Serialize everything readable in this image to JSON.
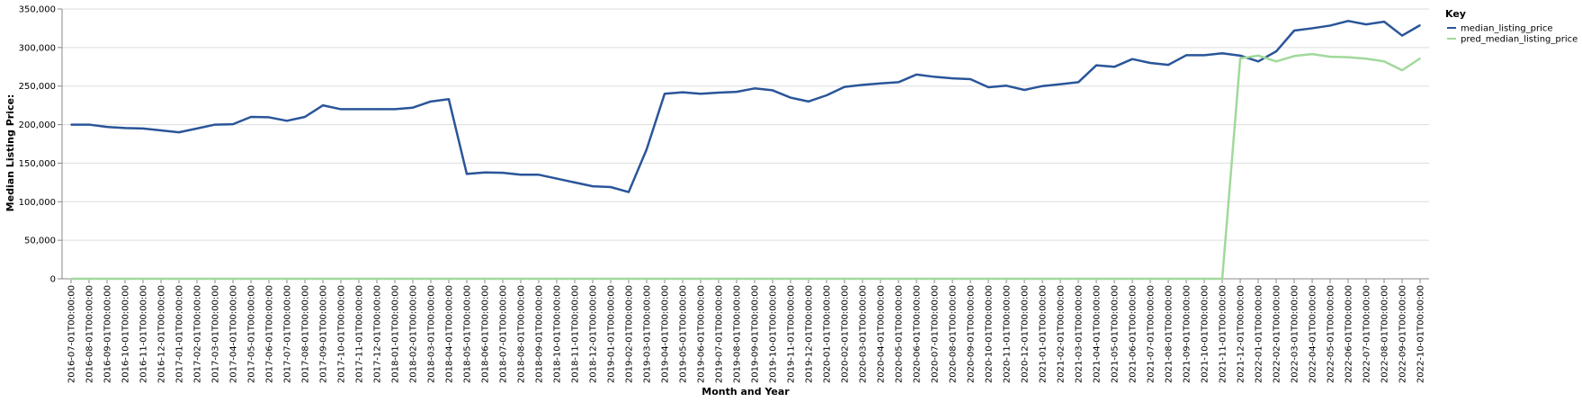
{
  "chart_data": {
    "type": "line",
    "xlabel": "Month and Year",
    "ylabel": "Median Listing Price:",
    "ylim": [
      0,
      350000
    ],
    "yticks": [
      "0",
      "50,000",
      "100,000",
      "150,000",
      "200,000",
      "250,000",
      "300,000",
      "350,000"
    ],
    "ytick_values": [
      0,
      50000,
      100000,
      150000,
      200000,
      250000,
      300000,
      350000
    ],
    "grid": true,
    "legend": {
      "title": "Key",
      "placement": "top-right"
    },
    "x": [
      "2016-07-01T00:00:00",
      "2016-08-01T00:00:00",
      "2016-09-01T00:00:00",
      "2016-10-01T00:00:00",
      "2016-11-01T00:00:00",
      "2016-12-01T00:00:00",
      "2017-01-01T00:00:00",
      "2017-02-01T00:00:00",
      "2017-03-01T00:00:00",
      "2017-04-01T00:00:00",
      "2017-05-01T00:00:00",
      "2017-06-01T00:00:00",
      "2017-07-01T00:00:00",
      "2017-08-01T00:00:00",
      "2017-09-01T00:00:00",
      "2017-10-01T00:00:00",
      "2017-11-01T00:00:00",
      "2017-12-01T00:00:00",
      "2018-01-01T00:00:00",
      "2018-02-01T00:00:00",
      "2018-03-01T00:00:00",
      "2018-04-01T00:00:00",
      "2018-05-01T00:00:00",
      "2018-06-01T00:00:00",
      "2018-07-01T00:00:00",
      "2018-08-01T00:00:00",
      "2018-09-01T00:00:00",
      "2018-10-01T00:00:00",
      "2018-11-01T00:00:00",
      "2018-12-01T00:00:00",
      "2019-01-01T00:00:00",
      "2019-02-01T00:00:00",
      "2019-03-01T00:00:00",
      "2019-04-01T00:00:00",
      "2019-05-01T00:00:00",
      "2019-06-01T00:00:00",
      "2019-07-01T00:00:00",
      "2019-08-01T00:00:00",
      "2019-09-01T00:00:00",
      "2019-10-01T00:00:00",
      "2019-11-01T00:00:00",
      "2019-12-01T00:00:00",
      "2020-01-01T00:00:00",
      "2020-02-01T00:00:00",
      "2020-03-01T00:00:00",
      "2020-04-01T00:00:00",
      "2020-05-01T00:00:00",
      "2020-06-01T00:00:00",
      "2020-07-01T00:00:00",
      "2020-08-01T00:00:00",
      "2020-09-01T00:00:00",
      "2020-10-01T00:00:00",
      "2020-11-01T00:00:00",
      "2020-12-01T00:00:00",
      "2021-01-01T00:00:00",
      "2021-02-01T00:00:00",
      "2021-03-01T00:00:00",
      "2021-04-01T00:00:00",
      "2021-05-01T00:00:00",
      "2021-06-01T00:00:00",
      "2021-07-01T00:00:00",
      "2021-08-01T00:00:00",
      "2021-09-01T00:00:00",
      "2021-10-01T00:00:00",
      "2021-11-01T00:00:00",
      "2021-12-01T00:00:00",
      "2022-01-01T00:00:00",
      "2022-02-01T00:00:00",
      "2022-03-01T00:00:00",
      "2022-04-01T00:00:00",
      "2022-05-01T00:00:00",
      "2022-06-01T00:00:00",
      "2022-07-01T00:00:00",
      "2022-08-01T00:00:00",
      "2022-09-01T00:00:00",
      "2022-10-01T00:00:00"
    ],
    "series": [
      {
        "name": "median_listing_price",
        "color": "#2a5599",
        "values": [
          200000,
          200000,
          197000,
          195500,
          195000,
          192500,
          190000,
          195000,
          200000,
          200500,
          210000,
          209500,
          205000,
          210000,
          225000,
          220000,
          220000,
          220000,
          220000,
          222000,
          230000,
          233000,
          136000,
          138000,
          137500,
          135000,
          135000,
          130000,
          125000,
          120000,
          119000,
          112500,
          168000,
          240000,
          242000,
          240000,
          241500,
          242500,
          247000,
          244500,
          235000,
          230000,
          238000,
          249000,
          251500,
          253500,
          255000,
          265000,
          262000,
          260000,
          259000,
          248500,
          250500,
          245000,
          250000,
          252500,
          255000,
          277000,
          275000,
          285000,
          280000,
          277500,
          290000,
          290000,
          292500,
          289500,
          282000,
          295000,
          322000,
          325000,
          328500,
          334500,
          330000,
          333500,
          315500,
          329000
        ]
      },
      {
        "name": "pred_median_listing_price",
        "color": "#a1d99b",
        "values": [
          0,
          0,
          0,
          0,
          0,
          0,
          0,
          0,
          0,
          0,
          0,
          0,
          0,
          0,
          0,
          0,
          0,
          0,
          0,
          0,
          0,
          0,
          0,
          0,
          0,
          0,
          0,
          0,
          0,
          0,
          0,
          0,
          0,
          0,
          0,
          0,
          0,
          0,
          0,
          0,
          0,
          0,
          0,
          0,
          0,
          0,
          0,
          0,
          0,
          0,
          0,
          0,
          0,
          0,
          0,
          0,
          0,
          0,
          0,
          0,
          0,
          0,
          0,
          0,
          0,
          286000,
          289500,
          282000,
          289000,
          291500,
          288000,
          287500,
          285500,
          282000,
          270500,
          286000
        ]
      }
    ]
  }
}
